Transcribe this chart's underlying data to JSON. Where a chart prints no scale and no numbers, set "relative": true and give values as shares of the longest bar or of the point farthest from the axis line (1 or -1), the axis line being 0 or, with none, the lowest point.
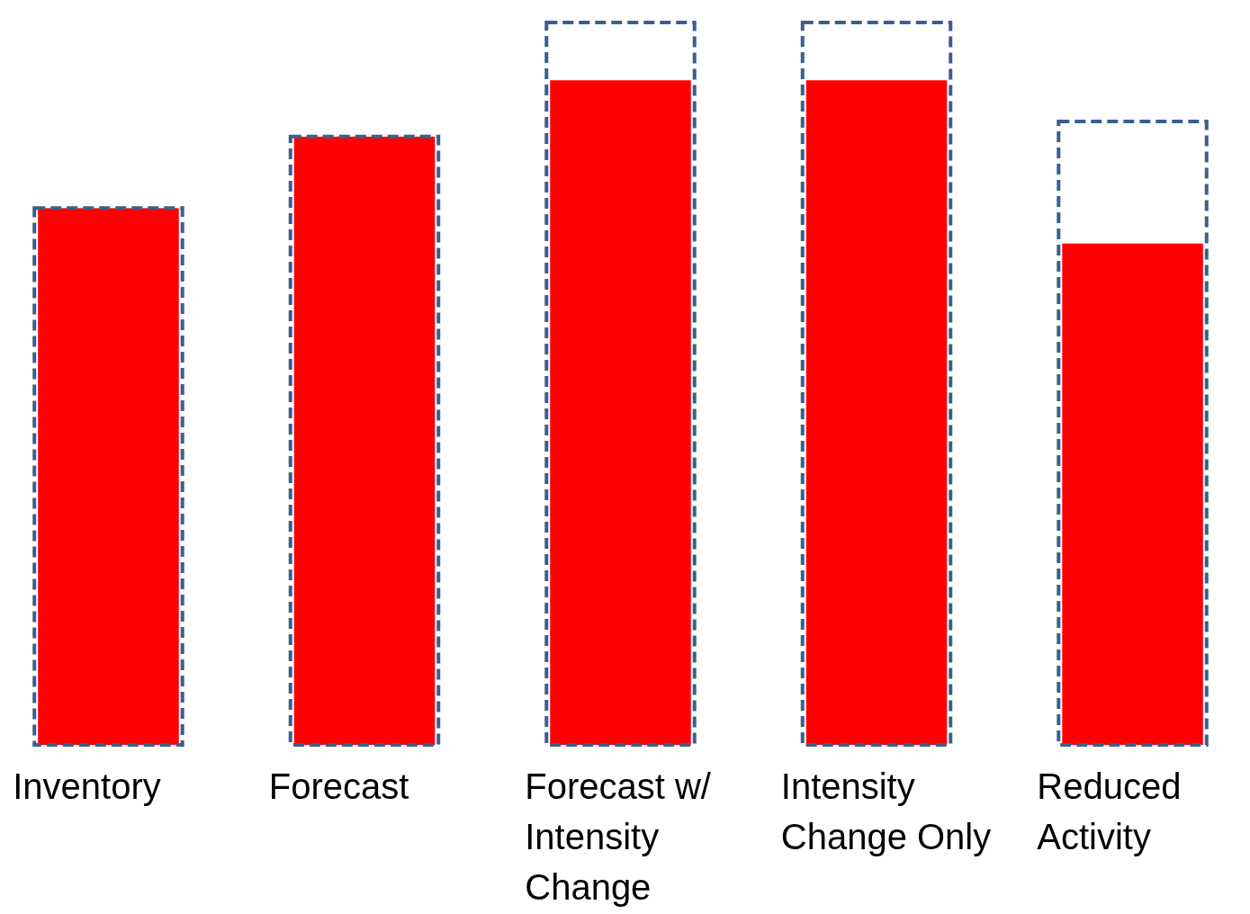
{
  "chart_data": {
    "type": "bar",
    "relative": true,
    "categories": [
      "Inventory",
      "Forecast",
      "Forecast w/ Intensity Change",
      "Intensity Change Only",
      "Reduced Activity"
    ],
    "series": [
      {
        "color": "#ff0000",
        "values": [
          0.743,
          0.842,
          0.92,
          0.92,
          0.694
        ]
      },
      {
        "color": "#3a5f8f",
        "line_style": "dashed",
        "values": [
          0.743,
          0.842,
          1,
          1,
          0.863
        ]
      }
    ]
  }
}
